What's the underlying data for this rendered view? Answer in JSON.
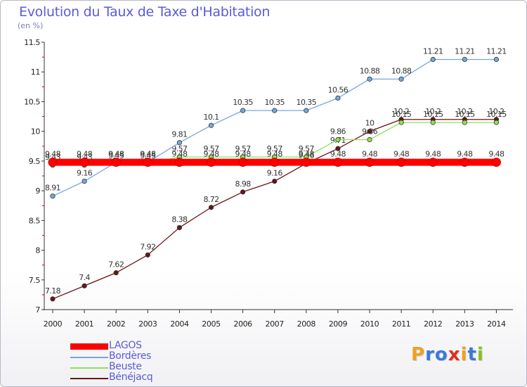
{
  "header": {
    "title": "Evolution du Taux de Taxe d'Habitation",
    "subtitle": "(en %)"
  },
  "logo": {
    "text": "Proxiti",
    "letter_colors": [
      "#f0a020",
      "#3a7ad8",
      "#3a7ad8",
      "#e03020",
      "#f0a020",
      "#3a7ad8",
      "#88c020"
    ]
  },
  "chart_data": {
    "type": "line",
    "x": [
      2000,
      2001,
      2002,
      2003,
      2004,
      2005,
      2006,
      2007,
      2008,
      2009,
      2010,
      2011,
      2012,
      2013,
      2014
    ],
    "ylim": [
      7,
      11.5
    ],
    "yticks": [
      7,
      7.5,
      8,
      8.5,
      9,
      9.5,
      10,
      10.5,
      11,
      11.5
    ],
    "ytick_labels": [
      "7",
      "7.5",
      "8",
      "8.5",
      "9",
      "9.5",
      "10",
      "10.5",
      "11",
      "11.5"
    ],
    "grid": false,
    "legend_position": "bottom-left",
    "series": [
      {
        "name": "Bénéjacq",
        "color": "#6b1414",
        "values": [
          7.18,
          7.4,
          7.62,
          7.92,
          8.38,
          8.72,
          8.98,
          9.16,
          9.46,
          9.71,
          10,
          10.2,
          10.2,
          10.2,
          10.2
        ],
        "labels": [
          "7.18",
          "7.4",
          "7.62",
          "7.92",
          "8.38",
          "8.72",
          "8.98",
          "9.16",
          "9.46",
          "9.71",
          "10",
          "10.2",
          "10.2",
          "10.2",
          "10.2"
        ]
      },
      {
        "name": "Beuste",
        "color": "#8ee05a",
        "values": [
          9.43,
          9.43,
          9.45,
          9.45,
          9.57,
          9.57,
          9.57,
          9.57,
          9.57,
          9.86,
          9.86,
          10.15,
          10.15,
          10.15,
          10.15
        ],
        "labels": [
          "9.43",
          "9.43",
          "9.45",
          "9.45",
          "9.57",
          "9.57",
          "9.57",
          "9.57",
          "9.57",
          "9.86",
          "9.86",
          "10.15",
          "10.15",
          "10.15",
          "10.15"
        ]
      },
      {
        "name": "Bordères",
        "color": "#74a8e0",
        "values": [
          8.91,
          9.16,
          9.48,
          9.48,
          9.81,
          10.1,
          10.35,
          10.35,
          10.35,
          10.56,
          10.88,
          10.88,
          11.21,
          11.21,
          11.21
        ],
        "labels": [
          "8.91",
          "9.16",
          "9.48",
          "9.48",
          "9.81",
          "10.1",
          "10.35",
          "10.35",
          "10.35",
          "10.56",
          "10.88",
          "10.88",
          "11.21",
          "11.21",
          "11.21"
        ]
      },
      {
        "name": "LAGOS",
        "color": "#ff0000",
        "values": [
          9.48,
          9.48,
          9.48,
          9.48,
          9.48,
          9.48,
          9.48,
          9.48,
          9.48,
          9.48,
          9.48,
          9.48,
          9.48,
          9.48,
          9.48
        ],
        "labels": [
          "9.48",
          "9.48",
          "9.48",
          "9.48",
          "9.48",
          "9.48",
          "9.48",
          "9.48",
          "9.48",
          "9.48",
          "9.48",
          "9.48",
          "9.48",
          "9.48",
          "9.48"
        ]
      }
    ],
    "legend": [
      "LAGOS",
      "Bordères",
      "Beuste",
      "Bénéjacq"
    ]
  }
}
